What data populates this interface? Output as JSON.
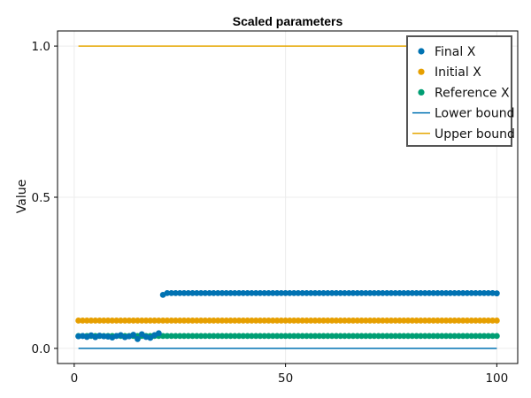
{
  "chart_data": {
    "type": "scatter",
    "title": "Scaled parameters",
    "xlabel": "",
    "ylabel": "Value",
    "xlim": [
      -3.95,
      104.95
    ],
    "ylim": [
      -0.05,
      1.05
    ],
    "x_ticks": [
      0,
      50,
      100
    ],
    "x_tick_labels": [
      "0",
      "50",
      "100"
    ],
    "y_ticks": [
      0.0,
      0.5,
      1.0
    ],
    "y_tick_labels": [
      "0.0",
      "0.5",
      "1.0"
    ],
    "grid": true,
    "legend_position": "top-right",
    "colors": {
      "final": "#0072b2",
      "initial": "#e69f00",
      "reference": "#009e73",
      "lower": "#0072b2",
      "upper": "#e6a700"
    },
    "series": [
      {
        "name": "Final X",
        "kind": "points",
        "x": [
          1,
          2,
          3,
          4,
          5,
          6,
          7,
          8,
          9,
          10,
          11,
          12,
          13,
          14,
          15,
          16,
          17,
          18,
          19,
          20,
          21,
          22,
          23,
          24,
          25,
          26,
          27,
          28,
          29,
          30,
          31,
          32,
          33,
          34,
          35,
          36,
          37,
          38,
          39,
          40,
          41,
          42,
          43,
          44,
          45,
          46,
          47,
          48,
          49,
          50,
          51,
          52,
          53,
          54,
          55,
          56,
          57,
          58,
          59,
          60,
          61,
          62,
          63,
          64,
          65,
          66,
          67,
          68,
          69,
          70,
          71,
          72,
          73,
          74,
          75,
          76,
          77,
          78,
          79,
          80,
          81,
          82,
          83,
          84,
          85,
          86,
          87,
          88,
          89,
          90,
          91,
          92,
          93,
          94,
          95,
          96,
          97,
          98,
          99,
          100
        ],
        "y": [
          0.04,
          0.041,
          0.038,
          0.043,
          0.037,
          0.042,
          0.04,
          0.039,
          0.036,
          0.041,
          0.044,
          0.037,
          0.04,
          0.045,
          0.031,
          0.047,
          0.038,
          0.035,
          0.044,
          0.05,
          0.177,
          0.183,
          0.183,
          0.183,
          0.183,
          0.183,
          0.183,
          0.183,
          0.183,
          0.183,
          0.183,
          0.183,
          0.183,
          0.183,
          0.183,
          0.183,
          0.183,
          0.183,
          0.183,
          0.183,
          0.183,
          0.183,
          0.183,
          0.183,
          0.183,
          0.183,
          0.183,
          0.183,
          0.183,
          0.183,
          0.183,
          0.183,
          0.183,
          0.183,
          0.183,
          0.183,
          0.183,
          0.183,
          0.183,
          0.183,
          0.183,
          0.183,
          0.183,
          0.183,
          0.183,
          0.183,
          0.183,
          0.183,
          0.183,
          0.183,
          0.183,
          0.183,
          0.183,
          0.183,
          0.183,
          0.183,
          0.183,
          0.183,
          0.183,
          0.183,
          0.183,
          0.183,
          0.183,
          0.183,
          0.183,
          0.183,
          0.183,
          0.183,
          0.183,
          0.183,
          0.183,
          0.183,
          0.183,
          0.183,
          0.183,
          0.183,
          0.183,
          0.183,
          0.183,
          0.182
        ]
      },
      {
        "name": "Initial X",
        "kind": "points",
        "x": [
          1,
          2,
          3,
          4,
          5,
          6,
          7,
          8,
          9,
          10,
          11,
          12,
          13,
          14,
          15,
          16,
          17,
          18,
          19,
          20,
          21,
          22,
          23,
          24,
          25,
          26,
          27,
          28,
          29,
          30,
          31,
          32,
          33,
          34,
          35,
          36,
          37,
          38,
          39,
          40,
          41,
          42,
          43,
          44,
          45,
          46,
          47,
          48,
          49,
          50,
          51,
          52,
          53,
          54,
          55,
          56,
          57,
          58,
          59,
          60,
          61,
          62,
          63,
          64,
          65,
          66,
          67,
          68,
          69,
          70,
          71,
          72,
          73,
          74,
          75,
          76,
          77,
          78,
          79,
          80,
          81,
          82,
          83,
          84,
          85,
          86,
          87,
          88,
          89,
          90,
          91,
          92,
          93,
          94,
          95,
          96,
          97,
          98,
          99,
          100
        ],
        "y": [
          0.092,
          0.092,
          0.092,
          0.092,
          0.092,
          0.092,
          0.092,
          0.092,
          0.092,
          0.092,
          0.092,
          0.092,
          0.092,
          0.092,
          0.092,
          0.092,
          0.092,
          0.092,
          0.092,
          0.092,
          0.092,
          0.092,
          0.092,
          0.092,
          0.092,
          0.092,
          0.092,
          0.092,
          0.092,
          0.092,
          0.092,
          0.092,
          0.092,
          0.092,
          0.092,
          0.092,
          0.092,
          0.092,
          0.092,
          0.092,
          0.092,
          0.092,
          0.092,
          0.092,
          0.092,
          0.092,
          0.092,
          0.092,
          0.092,
          0.092,
          0.092,
          0.092,
          0.092,
          0.092,
          0.092,
          0.092,
          0.092,
          0.092,
          0.092,
          0.092,
          0.092,
          0.092,
          0.092,
          0.092,
          0.092,
          0.092,
          0.092,
          0.092,
          0.092,
          0.092,
          0.092,
          0.092,
          0.092,
          0.092,
          0.092,
          0.092,
          0.092,
          0.092,
          0.092,
          0.092,
          0.092,
          0.092,
          0.092,
          0.092,
          0.092,
          0.092,
          0.092,
          0.092,
          0.092,
          0.092,
          0.092,
          0.092,
          0.092,
          0.092,
          0.092,
          0.092,
          0.092,
          0.092,
          0.092,
          0.092
        ]
      },
      {
        "name": "Reference X",
        "kind": "points",
        "x": [
          1,
          2,
          3,
          4,
          5,
          6,
          7,
          8,
          9,
          10,
          11,
          12,
          13,
          14,
          15,
          16,
          17,
          18,
          19,
          20,
          21,
          22,
          23,
          24,
          25,
          26,
          27,
          28,
          29,
          30,
          31,
          32,
          33,
          34,
          35,
          36,
          37,
          38,
          39,
          40,
          41,
          42,
          43,
          44,
          45,
          46,
          47,
          48,
          49,
          50,
          51,
          52,
          53,
          54,
          55,
          56,
          57,
          58,
          59,
          60,
          61,
          62,
          63,
          64,
          65,
          66,
          67,
          68,
          69,
          70,
          71,
          72,
          73,
          74,
          75,
          76,
          77,
          78,
          79,
          80,
          81,
          82,
          83,
          84,
          85,
          86,
          87,
          88,
          89,
          90,
          91,
          92,
          93,
          94,
          95,
          96,
          97,
          98,
          99,
          100
        ],
        "y": [
          0.041,
          0.041,
          0.041,
          0.041,
          0.041,
          0.041,
          0.041,
          0.041,
          0.041,
          0.041,
          0.041,
          0.041,
          0.041,
          0.041,
          0.041,
          0.041,
          0.041,
          0.041,
          0.041,
          0.041,
          0.041,
          0.041,
          0.041,
          0.041,
          0.041,
          0.041,
          0.041,
          0.041,
          0.041,
          0.041,
          0.041,
          0.041,
          0.041,
          0.041,
          0.041,
          0.041,
          0.041,
          0.041,
          0.041,
          0.041,
          0.041,
          0.041,
          0.041,
          0.041,
          0.041,
          0.041,
          0.041,
          0.041,
          0.041,
          0.041,
          0.041,
          0.041,
          0.041,
          0.041,
          0.041,
          0.041,
          0.041,
          0.041,
          0.041,
          0.041,
          0.041,
          0.041,
          0.041,
          0.041,
          0.041,
          0.041,
          0.041,
          0.041,
          0.041,
          0.041,
          0.041,
          0.041,
          0.041,
          0.041,
          0.041,
          0.041,
          0.041,
          0.041,
          0.041,
          0.041,
          0.041,
          0.041,
          0.041,
          0.041,
          0.041,
          0.041,
          0.041,
          0.041,
          0.041,
          0.041,
          0.041,
          0.041,
          0.041,
          0.041,
          0.041,
          0.041,
          0.041,
          0.041,
          0.041,
          0.041
        ]
      },
      {
        "name": "Lower bound",
        "kind": "line",
        "x": [
          1,
          100
        ],
        "y": [
          0.0,
          0.0
        ]
      },
      {
        "name": "Upper bound",
        "kind": "line",
        "x": [
          1,
          100
        ],
        "y": [
          1.0,
          1.0
        ]
      }
    ]
  }
}
